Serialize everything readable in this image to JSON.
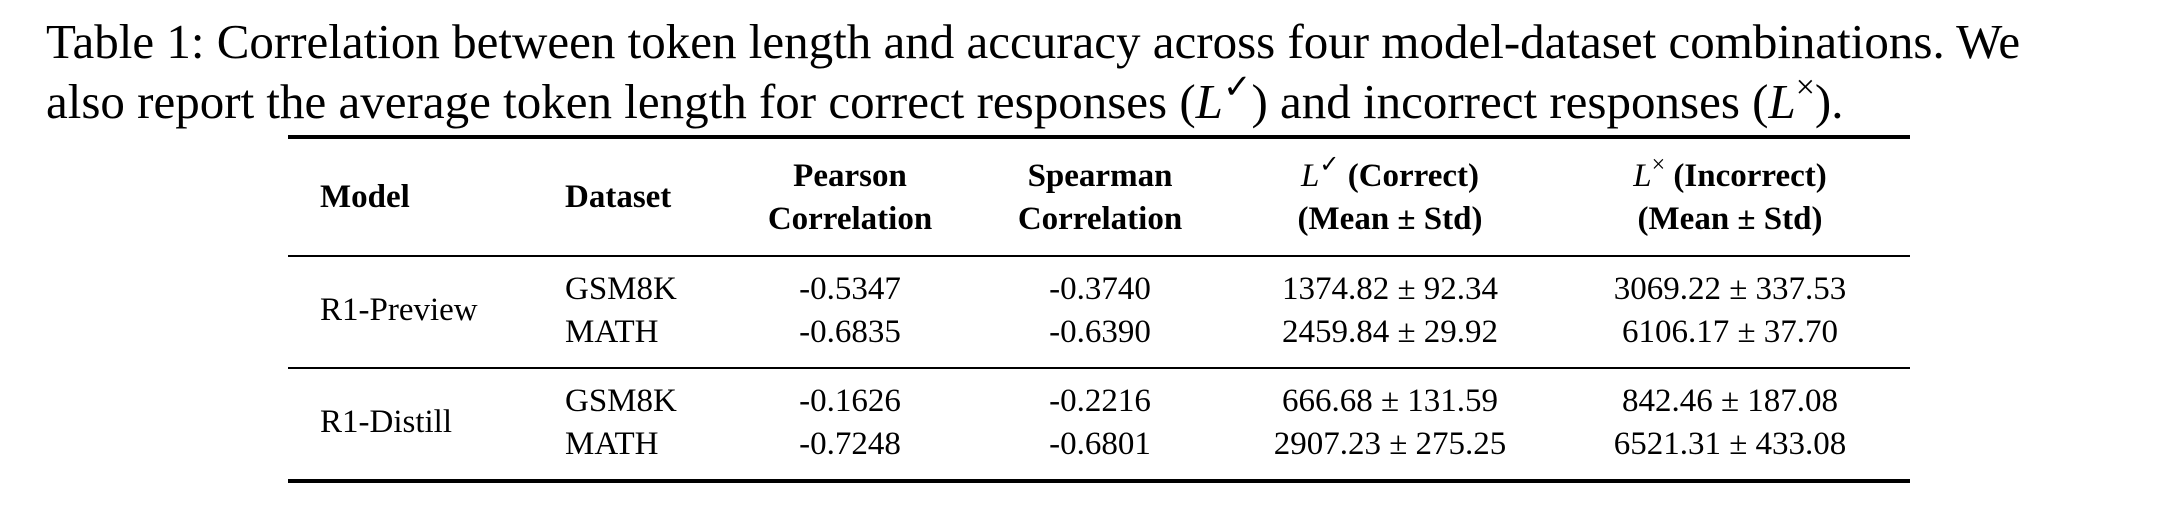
{
  "caption": {
    "line1": "Table 1: Correlation between token length and accuracy across four model-dataset combinations. We",
    "line2_pre": "also report the average token length for correct responses (",
    "line2_mid": ") and incorrect responses (",
    "line2_post": ").",
    "symbol_L": "L",
    "correct_mark": "✓",
    "incorrect_mark": "×"
  },
  "table": {
    "headers": {
      "model": "Model",
      "dataset": "Dataset",
      "pearson_1": "Pearson",
      "pearson_2": "Correlation",
      "spearman_1": "Spearman",
      "spearman_2": "Correlation",
      "correct_1": "(Correct)",
      "correct_2": "(Mean ± Std)",
      "incorrect_1": "(Incorrect)",
      "incorrect_2": "(Mean ± Std)"
    },
    "groups": [
      {
        "model": "R1-Preview",
        "rows": [
          {
            "dataset": "GSM8K",
            "pearson": "-0.5347",
            "spearman": "-0.3740",
            "correct": "1374.82 ± 92.34",
            "incorrect": "3069.22 ± 337.53"
          },
          {
            "dataset": "MATH",
            "pearson": "-0.6835",
            "spearman": "-0.6390",
            "correct": "2459.84 ± 29.92",
            "incorrect": "6106.17 ± 37.70"
          }
        ]
      },
      {
        "model": "R1-Distill",
        "rows": [
          {
            "dataset": "GSM8K",
            "pearson": "-0.1626",
            "spearman": "-0.2216",
            "correct": "666.68 ± 131.59",
            "incorrect": "842.46 ± 187.08"
          },
          {
            "dataset": "MATH",
            "pearson": "-0.7248",
            "spearman": "-0.6801",
            "correct": "2907.23 ± 275.25",
            "incorrect": "6521.31 ± 433.08"
          }
        ]
      }
    ]
  }
}
